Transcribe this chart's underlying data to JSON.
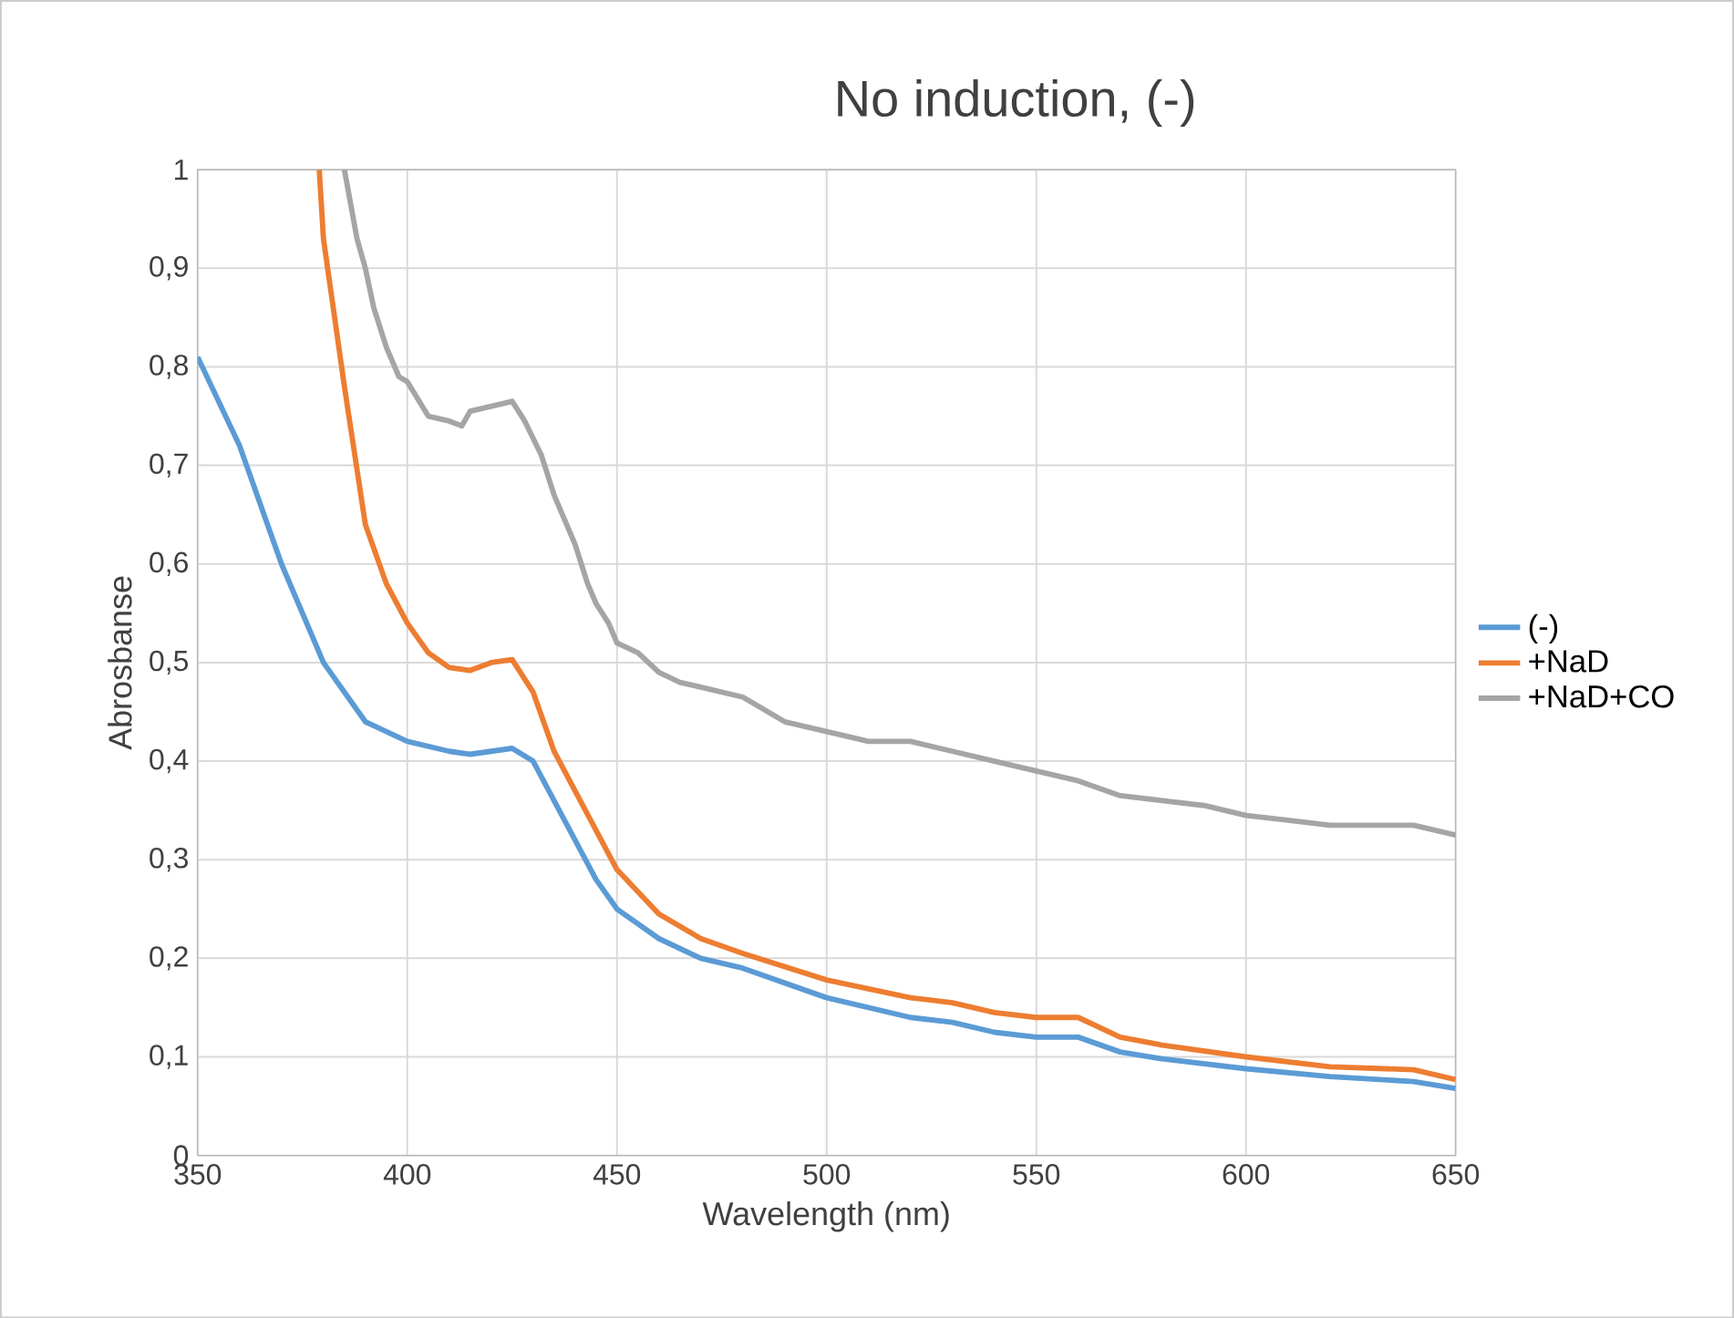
{
  "chart_data": {
    "type": "line",
    "title": "No induction, (-)",
    "xlabel": "Wavelength (nm)",
    "ylabel": "Abrosbanse",
    "xlim": [
      350,
      650
    ],
    "ylim": [
      0,
      1
    ],
    "xticks": [
      350,
      400,
      450,
      500,
      550,
      600,
      650
    ],
    "yticks": [
      0,
      {
        "value": 0.1,
        "label": "0,1"
      },
      {
        "value": 0.2,
        "label": "0,2"
      },
      {
        "value": 0.3,
        "label": "0,3"
      },
      {
        "value": 0.4,
        "label": "0,4"
      },
      {
        "value": 0.5,
        "label": "0,5"
      },
      {
        "value": 0.6,
        "label": "0,6"
      },
      {
        "value": 0.7,
        "label": "0,7"
      },
      {
        "value": 0.8,
        "label": "0,8"
      },
      {
        "value": 0.9,
        "label": "0,9"
      },
      1
    ],
    "grid": true,
    "legend": "right",
    "marker": "none",
    "line_style": "solid",
    "series": [
      {
        "name": "(-)",
        "color": "#5b9bd5",
        "x": [
          350,
          360,
          370,
          380,
          390,
          400,
          410,
          415,
          420,
          425,
          430,
          435,
          440,
          445,
          450,
          460,
          470,
          480,
          500,
          520,
          530,
          540,
          550,
          560,
          570,
          580,
          600,
          620,
          640,
          650
        ],
        "values": [
          0.81,
          0.72,
          0.6,
          0.5,
          0.44,
          0.42,
          0.41,
          0.407,
          0.41,
          0.413,
          0.4,
          0.36,
          0.32,
          0.28,
          0.25,
          0.22,
          0.2,
          0.19,
          0.16,
          0.14,
          0.135,
          0.125,
          0.12,
          0.12,
          0.105,
          0.098,
          0.088,
          0.08,
          0.075,
          0.068
        ]
      },
      {
        "name": "+NaD",
        "color": "#ed7d31",
        "x": [
          379,
          380,
          385,
          390,
          395,
          400,
          405,
          410,
          415,
          420,
          425,
          430,
          435,
          440,
          445,
          450,
          460,
          470,
          480,
          500,
          520,
          530,
          540,
          550,
          560,
          565,
          570,
          580,
          600,
          620,
          640,
          650
        ],
        "values": [
          1,
          0.93,
          0.78,
          0.64,
          0.58,
          0.54,
          0.51,
          0.495,
          0.492,
          0.5,
          0.503,
          0.47,
          0.41,
          0.37,
          0.33,
          0.29,
          0.245,
          0.22,
          0.205,
          0.178,
          0.16,
          0.155,
          0.145,
          0.14,
          0.14,
          0.13,
          0.12,
          0.112,
          0.1,
          0.09,
          0.087,
          0.077
        ]
      },
      {
        "name": "+NaD+CO",
        "color": "#a5a5a5",
        "x": [
          385,
          388,
          390,
          392,
          395,
          398,
          400,
          405,
          410,
          413,
          415,
          420,
          425,
          428,
          432,
          435,
          440,
          443,
          445,
          448,
          450,
          455,
          460,
          465,
          470,
          480,
          490,
          500,
          510,
          520,
          530,
          540,
          550,
          560,
          570,
          580,
          590,
          600,
          610,
          620,
          630,
          640,
          650
        ],
        "values": [
          1,
          0.93,
          0.9,
          0.86,
          0.82,
          0.79,
          0.785,
          0.75,
          0.745,
          0.74,
          0.755,
          0.76,
          0.765,
          0.745,
          0.71,
          0.67,
          0.62,
          0.58,
          0.56,
          0.54,
          0.52,
          0.51,
          0.49,
          0.48,
          0.475,
          0.465,
          0.44,
          0.43,
          0.42,
          0.42,
          0.41,
          0.4,
          0.39,
          0.38,
          0.365,
          0.36,
          0.355,
          0.345,
          0.34,
          0.335,
          0.335,
          0.335,
          0.325
        ]
      }
    ]
  }
}
